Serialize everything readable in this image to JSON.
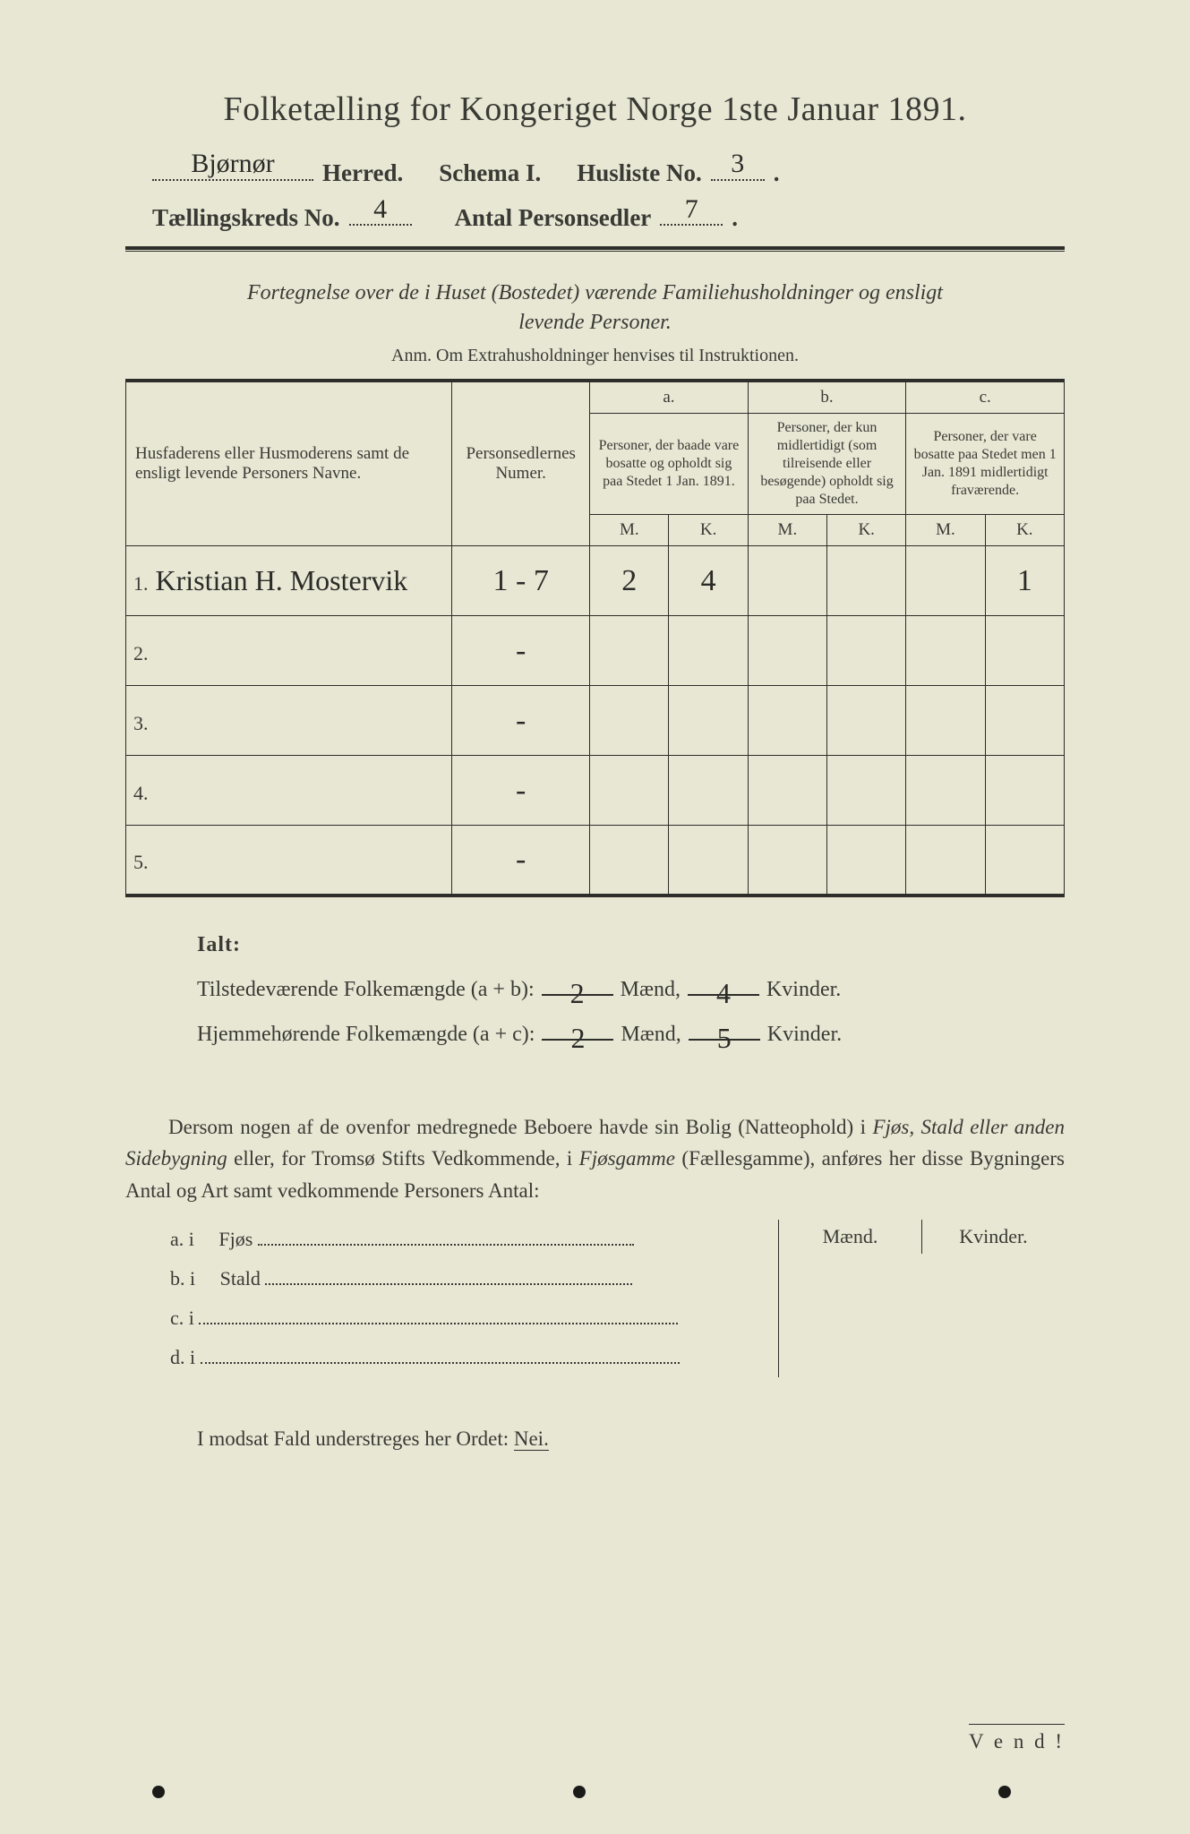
{
  "title": "Folketælling for Kongeriget Norge 1ste Januar 1891.",
  "header": {
    "herred_value": "Bjørnør",
    "herred_label": "Herred.",
    "schema_label": "Schema I.",
    "husliste_label": "Husliste No.",
    "husliste_value": "3",
    "kreds_label": "Tællingskreds No.",
    "kreds_value": "4",
    "antal_label": "Antal Personsedler",
    "antal_value": "7"
  },
  "subtitle_1": "Fortegnelse over de i Huset (Bostedet) værende Familiehusholdninger og ensligt",
  "subtitle_2": "levende Personer.",
  "anm": "Anm. Om Extrahusholdninger henvises til Instruktionen.",
  "table": {
    "col_name": "Husfaderens eller Husmoderens samt de ensligt levende Personers Navne.",
    "col_num": "Personsedlernes Numer.",
    "col_a_label": "a.",
    "col_a_text": "Personer, der baade vare bosatte og opholdt sig paa Stedet 1 Jan. 1891.",
    "col_b_label": "b.",
    "col_b_text": "Personer, der kun midlertidigt (som tilreisende eller besøgende) opholdt sig paa Stedet.",
    "col_c_label": "c.",
    "col_c_text": "Personer, der vare bosatte paa Stedet men 1 Jan. 1891 midlertidigt fraværende.",
    "m_label": "M.",
    "k_label": "K.",
    "rows": [
      {
        "n": "1.",
        "name": "Kristian H. Mostervik",
        "num": "1 - 7",
        "a_m": "2",
        "a_k": "4",
        "b_m": "",
        "b_k": "",
        "c_m": "",
        "c_k": "1"
      },
      {
        "n": "2.",
        "name": "",
        "num": "-",
        "a_m": "",
        "a_k": "",
        "b_m": "",
        "b_k": "",
        "c_m": "",
        "c_k": ""
      },
      {
        "n": "3.",
        "name": "",
        "num": "-",
        "a_m": "",
        "a_k": "",
        "b_m": "",
        "b_k": "",
        "c_m": "",
        "c_k": ""
      },
      {
        "n": "4.",
        "name": "",
        "num": "-",
        "a_m": "",
        "a_k": "",
        "b_m": "",
        "b_k": "",
        "c_m": "",
        "c_k": ""
      },
      {
        "n": "5.",
        "name": "",
        "num": "-",
        "a_m": "",
        "a_k": "",
        "b_m": "",
        "b_k": "",
        "c_m": "",
        "c_k": ""
      }
    ]
  },
  "ialt": {
    "label": "Ialt:",
    "line1_pre": "Tilstedeværende Folkemængde (a + b):",
    "line1_m": "2",
    "line1_m_suf": "Mænd,",
    "line1_k": "4",
    "line1_k_suf": "Kvinder.",
    "line2_pre": "Hjemmehørende Folkemængde (a + c):",
    "line2_m": "2",
    "line2_m_suf": "Mænd,",
    "line2_k": "5",
    "line2_k_suf": "Kvinder."
  },
  "para": {
    "t1": "Dersom nogen af de ovenfor medregnede Beboere havde sin Bolig (Natteophold) i ",
    "it1": "Fjøs, Stald eller anden Sidebygning",
    "t2": " eller, for Tromsø Stifts Vedkommende, i ",
    "it2": "Fjøsgamme",
    "t3": " (Fællesgamme), anføres her disse Bygningers Antal og Art samt vedkommende Personers Antal:"
  },
  "side": {
    "m": "Mænd.",
    "k": "Kvinder.",
    "a": "a.  i",
    "a_lab": "Fjøs",
    "b": "b.  i",
    "b_lab": "Stald",
    "c": "c.  i",
    "d": "d.  i"
  },
  "nei_pre": "I modsat Fald understreges her Ordet: ",
  "nei": "Nei.",
  "vend": "V e n d !",
  "colors": {
    "bg": "#e8e7d4",
    "ink": "#3a3a35",
    "rule": "#2d2d2a"
  }
}
